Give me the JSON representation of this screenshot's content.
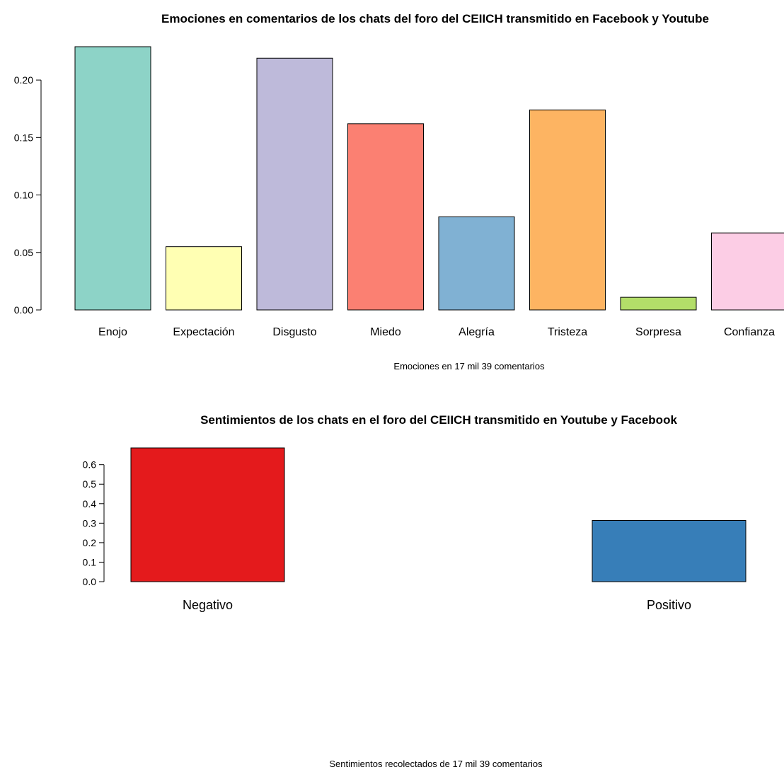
{
  "chart_data": [
    {
      "type": "bar",
      "title": "Emociones en comentarios de los chats del foro del CEIICH transmitido en Facebook y Youtube",
      "xlabel": "Emociones en 17 mil 39 comentarios",
      "ylabel": "",
      "categories": [
        "Enojo",
        "Expectación",
        "Disgusto",
        "Miedo",
        "Alegría",
        "Tristeza",
        "Sorpresa",
        "Confianza"
      ],
      "values": [
        0.229,
        0.055,
        0.219,
        0.162,
        0.081,
        0.174,
        0.011,
        0.067
      ],
      "colors": [
        "#8DD3C7",
        "#FFFFB3",
        "#BEBADA",
        "#FB8072",
        "#80B1D3",
        "#FDB462",
        "#B3DE69",
        "#FCCDE5"
      ],
      "yticks": [
        "0.00",
        "0.05",
        "0.10",
        "0.15",
        "0.20"
      ],
      "ylim": [
        0,
        0.229
      ],
      "grid": false,
      "legend": "none"
    },
    {
      "type": "bar",
      "title": "Sentimientos de los chats en el foro del CEIICH transmitido en Youtube y Facebook",
      "xlabel": "Sentimientos recolectados de 17 mil 39  comentarios",
      "ylabel": "",
      "categories": [
        "Negativo",
        "Positivo"
      ],
      "values": [
        0.686,
        0.314
      ],
      "colors": [
        "#E41A1C",
        "#377EB8"
      ],
      "yticks": [
        "0.0",
        "0.1",
        "0.2",
        "0.3",
        "0.4",
        "0.5",
        "0.6"
      ],
      "ylim": [
        0,
        0.686
      ],
      "grid": false,
      "legend": "none"
    }
  ]
}
